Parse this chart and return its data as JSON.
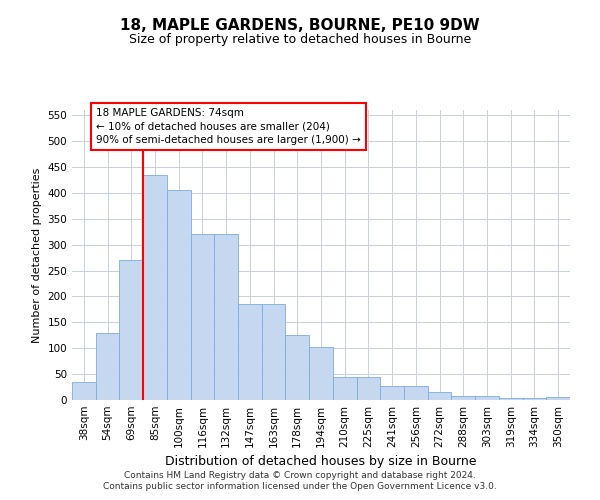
{
  "title1": "18, MAPLE GARDENS, BOURNE, PE10 9DW",
  "title2": "Size of property relative to detached houses in Bourne",
  "xlabel": "Distribution of detached houses by size in Bourne",
  "ylabel": "Number of detached properties",
  "categories": [
    "38sqm",
    "54sqm",
    "69sqm",
    "85sqm",
    "100sqm",
    "116sqm",
    "132sqm",
    "147sqm",
    "163sqm",
    "178sqm",
    "194sqm",
    "210sqm",
    "225sqm",
    "241sqm",
    "256sqm",
    "272sqm",
    "288sqm",
    "303sqm",
    "319sqm",
    "334sqm",
    "350sqm"
  ],
  "values": [
    35,
    130,
    270,
    435,
    405,
    320,
    320,
    185,
    185,
    125,
    103,
    45,
    45,
    28,
    28,
    15,
    7,
    8,
    3,
    3,
    5
  ],
  "bar_color": "#c5d8f0",
  "bar_edge_color": "#7aaddb",
  "red_line_index": 2,
  "annotation_text": "18 MAPLE GARDENS: 74sqm\n← 10% of detached houses are smaller (204)\n90% of semi-detached houses are larger (1,900) →",
  "ylim": [
    0,
    560
  ],
  "yticks": [
    0,
    50,
    100,
    150,
    200,
    250,
    300,
    350,
    400,
    450,
    500,
    550
  ],
  "footer1": "Contains HM Land Registry data © Crown copyright and database right 2024.",
  "footer2": "Contains public sector information licensed under the Open Government Licence v3.0.",
  "bg_color": "#ffffff",
  "grid_color": "#c8d0e0",
  "title1_fontsize": 11,
  "title2_fontsize": 9,
  "ylabel_fontsize": 8,
  "xlabel_fontsize": 9,
  "tick_fontsize": 7.5,
  "annotation_fontsize": 7.5,
  "footer_fontsize": 6.5
}
